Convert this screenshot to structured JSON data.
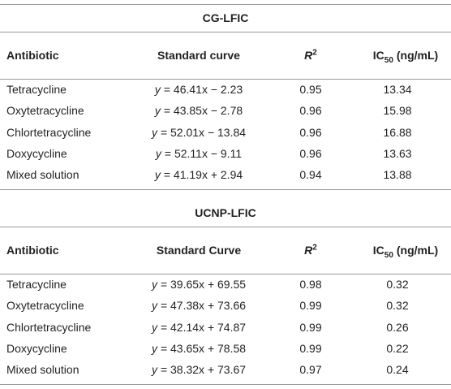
{
  "sections": [
    {
      "title": "CG-LFIC",
      "header": {
        "antibiotic": "Antibiotic",
        "curve": "Standard curve",
        "r2": {
          "base": "R",
          "sup": "2"
        },
        "ic50": {
          "base": "IC",
          "sub": "50",
          "unit": "(ng/mL)"
        }
      },
      "rows": [
        {
          "name": "Tetracycline",
          "curve": {
            "var": "y",
            "expr": "= 46.41x − 2.23"
          },
          "r2": "0.95",
          "ic50": "13.34"
        },
        {
          "name": "Oxytetracycline",
          "curve": {
            "var": "y",
            "expr": "= 43.85x − 2.78"
          },
          "r2": "0.96",
          "ic50": "15.98"
        },
        {
          "name": "Chlortetracycline",
          "curve": {
            "var": "y",
            "expr": "= 52.01x − 13.84"
          },
          "r2": "0.96",
          "ic50": "16.88"
        },
        {
          "name": "Doxycycline",
          "curve": {
            "var": "y",
            "expr": "= 52.11x − 9.11"
          },
          "r2": "0.96",
          "ic50": "13.63"
        },
        {
          "name": "Mixed solution",
          "curve": {
            "var": "y",
            "expr": "= 41.19x + 2.94"
          },
          "r2": "0.94",
          "ic50": "13.88"
        }
      ]
    },
    {
      "title": "UCNP-LFIC",
      "header": {
        "antibiotic": "Antibiotic",
        "curve": "Standard Curve",
        "r2": {
          "base": "R",
          "sup": "2"
        },
        "ic50": {
          "base": "IC",
          "sub": "50",
          "unit": "(ng/mL)"
        }
      },
      "rows": [
        {
          "name": "Tetracycline",
          "curve": {
            "var": "y",
            "expr": "= 39.65x + 69.55"
          },
          "r2": "0.98",
          "ic50": "0.32"
        },
        {
          "name": "Oxytetracycline",
          "curve": {
            "var": "y",
            "expr": "= 47.38x + 73.66"
          },
          "r2": "0.99",
          "ic50": "0.32"
        },
        {
          "name": "Chlortetracycline",
          "curve": {
            "var": "y",
            "expr": "= 42.14x + 74.87"
          },
          "r2": "0.99",
          "ic50": "0.26"
        },
        {
          "name": "Doxycycline",
          "curve": {
            "var": "y",
            "expr": "= 43.65x + 78.58"
          },
          "r2": "0.99",
          "ic50": "0.22"
        },
        {
          "name": "Mixed solution",
          "curve": {
            "var": "y",
            "expr": "= 38.32x + 73.67"
          },
          "r2": "0.97",
          "ic50": "0.24"
        }
      ]
    }
  ]
}
